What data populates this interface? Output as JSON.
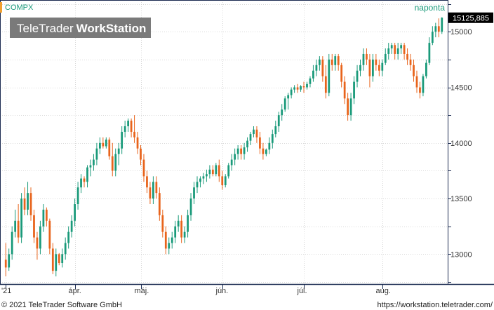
{
  "chart_data": {
    "type": "candlestick",
    "symbol": "COMPX",
    "period_label": "naponta",
    "brand": {
      "light": "TeleTrader",
      "bold": "WorkStation"
    },
    "last_price_label": "15125,885",
    "last_price": 15125.885,
    "ylim": [
      12750,
      15260
    ],
    "yticks": [
      {
        "value": 13000,
        "label": "13000"
      },
      {
        "value": 13500,
        "label": "13500"
      },
      {
        "value": 14000,
        "label": "14000"
      },
      {
        "value": 14500,
        "label": "14500"
      },
      {
        "value": 15000,
        "label": "15000"
      }
    ],
    "xticks": [
      {
        "index": 0,
        "label": "'21"
      },
      {
        "index": 22,
        "label": "ápr."
      },
      {
        "index": 43,
        "label": "máj."
      },
      {
        "index": 69,
        "label": "jún."
      },
      {
        "index": 95,
        "label": "júl."
      },
      {
        "index": 120,
        "label": "aug."
      }
    ],
    "grid": true,
    "colors": {
      "up": "#1a9a7a",
      "down": "#e8641c",
      "axis": "#1a2a50",
      "grid": "#cccccc",
      "label_bg": "#000000",
      "label_fg": "#ffffff",
      "accent": "#f0a030",
      "symbol": "#1a9a7a"
    },
    "candles": [
      [
        12950,
        13100,
        12800,
        12880
      ],
      [
        12880,
        13050,
        12850,
        13000
      ],
      [
        13000,
        13250,
        12950,
        13200
      ],
      [
        13200,
        13400,
        13150,
        13300
      ],
      [
        13300,
        13450,
        13100,
        13150
      ],
      [
        13150,
        13550,
        13100,
        13500
      ],
      [
        13500,
        13600,
        13350,
        13400
      ],
      [
        13400,
        13650,
        13350,
        13550
      ],
      [
        13550,
        13600,
        13300,
        13350
      ],
      [
        13350,
        13400,
        13100,
        13150
      ],
      [
        13150,
        13200,
        12950,
        13050
      ],
      [
        13050,
        13300,
        13000,
        13250
      ],
      [
        13250,
        13450,
        13200,
        13400
      ],
      [
        13400,
        13420,
        13250,
        13300
      ],
      [
        13300,
        13320,
        13000,
        13050
      ],
      [
        13050,
        13100,
        12820,
        12850
      ],
      [
        12850,
        13050,
        12800,
        13000
      ],
      [
        13000,
        13010,
        12900,
        12920
      ],
      [
        12920,
        13050,
        12880,
        13000
      ],
      [
        13000,
        13150,
        12950,
        13100
      ],
      [
        13100,
        13250,
        13050,
        13200
      ],
      [
        13200,
        13350,
        13150,
        13300
      ],
      [
        13300,
        13500,
        13250,
        13450
      ],
      [
        13450,
        13650,
        13400,
        13600
      ],
      [
        13600,
        13720,
        13550,
        13680
      ],
      [
        13680,
        13700,
        13600,
        13650
      ],
      [
        13650,
        13800,
        13600,
        13780
      ],
      [
        13780,
        13850,
        13700,
        13800
      ],
      [
        13800,
        13900,
        13750,
        13850
      ],
      [
        13850,
        14000,
        13800,
        13950
      ],
      [
        13950,
        14050,
        13900,
        14000
      ],
      [
        14000,
        14050,
        13950,
        13970
      ],
      [
        13970,
        14050,
        13950,
        14030
      ],
      [
        14030,
        14050,
        13850,
        13880
      ],
      [
        13880,
        14000,
        13700,
        13750
      ],
      [
        13750,
        13950,
        13700,
        13900
      ],
      [
        13900,
        14000,
        13800,
        13950
      ],
      [
        13950,
        14150,
        13900,
        14100
      ],
      [
        14100,
        14200,
        14050,
        14150
      ],
      [
        14150,
        14220,
        14100,
        14200
      ],
      [
        14200,
        14220,
        14050,
        14100
      ],
      [
        14100,
        14250,
        14000,
        14050
      ],
      [
        14050,
        14100,
        13900,
        13950
      ],
      [
        13950,
        13980,
        13800,
        13850
      ],
      [
        13850,
        13900,
        13650,
        13700
      ],
      [
        13700,
        13750,
        13550,
        13600
      ],
      [
        13600,
        13650,
        13450,
        13500
      ],
      [
        13500,
        13700,
        13450,
        13650
      ],
      [
        13650,
        13700,
        13500,
        13550
      ],
      [
        13550,
        13600,
        13300,
        13350
      ],
      [
        13350,
        13400,
        13150,
        13200
      ],
      [
        13200,
        13250,
        13000,
        13050
      ],
      [
        13050,
        13150,
        13000,
        13100
      ],
      [
        13100,
        13200,
        13050,
        13150
      ],
      [
        13150,
        13300,
        13100,
        13250
      ],
      [
        13250,
        13350,
        13200,
        13300
      ],
      [
        13300,
        13350,
        13100,
        13150
      ],
      [
        13150,
        13250,
        13100,
        13200
      ],
      [
        13200,
        13400,
        13150,
        13350
      ],
      [
        13350,
        13550,
        13300,
        13500
      ],
      [
        13500,
        13650,
        13450,
        13600
      ],
      [
        13600,
        13700,
        13550,
        13650
      ],
      [
        13650,
        13700,
        13600,
        13680
      ],
      [
        13680,
        13730,
        13630,
        13700
      ],
      [
        13700,
        13760,
        13650,
        13720
      ],
      [
        13720,
        13800,
        13680,
        13760
      ],
      [
        13760,
        13800,
        13700,
        13720
      ],
      [
        13720,
        13820,
        13700,
        13800
      ],
      [
        13800,
        13850,
        13650,
        13700
      ],
      [
        13700,
        13750,
        13580,
        13620
      ],
      [
        13620,
        13720,
        13600,
        13700
      ],
      [
        13700,
        13820,
        13680,
        13800
      ],
      [
        13800,
        13900,
        13750,
        13850
      ],
      [
        13850,
        13950,
        13800,
        13900
      ],
      [
        13900,
        13980,
        13850,
        13950
      ],
      [
        13950,
        13980,
        13850,
        13900
      ],
      [
        13900,
        14000,
        13850,
        13960
      ],
      [
        13960,
        14050,
        13920,
        14020
      ],
      [
        14020,
        14100,
        13980,
        14080
      ],
      [
        14080,
        14150,
        14050,
        14120
      ],
      [
        14120,
        14150,
        14000,
        14050
      ],
      [
        14050,
        14100,
        13900,
        13950
      ],
      [
        13950,
        14000,
        13850,
        13900
      ],
      [
        13900,
        13950,
        13880,
        13940
      ],
      [
        13940,
        14050,
        13900,
        14000
      ],
      [
        14000,
        14120,
        13950,
        14080
      ],
      [
        14080,
        14200,
        14050,
        14150
      ],
      [
        14150,
        14280,
        14100,
        14250
      ],
      [
        14250,
        14350,
        14200,
        14300
      ],
      [
        14300,
        14420,
        14280,
        14400
      ],
      [
        14400,
        14450,
        14300,
        14430
      ],
      [
        14430,
        14500,
        14400,
        14480
      ],
      [
        14480,
        14520,
        14450,
        14500
      ],
      [
        14500,
        14530,
        14450,
        14480
      ],
      [
        14480,
        14520,
        14460,
        14510
      ],
      [
        14510,
        14550,
        14450,
        14500
      ],
      [
        14500,
        14550,
        14480,
        14530
      ],
      [
        14530,
        14600,
        14500,
        14580
      ],
      [
        14580,
        14700,
        14550,
        14650
      ],
      [
        14650,
        14750,
        14600,
        14700
      ],
      [
        14700,
        14780,
        14650,
        14750
      ],
      [
        14750,
        14780,
        14550,
        14600
      ],
      [
        14600,
        14700,
        14400,
        14450
      ],
      [
        14450,
        14800,
        14420,
        14750
      ],
      [
        14750,
        14800,
        14650,
        14700
      ],
      [
        14700,
        14800,
        14650,
        14780
      ],
      [
        14780,
        14800,
        14650,
        14700
      ],
      [
        14700,
        14720,
        14500,
        14550
      ],
      [
        14550,
        14600,
        14350,
        14400
      ],
      [
        14400,
        14450,
        14200,
        14250
      ],
      [
        14250,
        14450,
        14200,
        14400
      ],
      [
        14400,
        14600,
        14350,
        14550
      ],
      [
        14550,
        14700,
        14500,
        14650
      ],
      [
        14650,
        14750,
        14600,
        14700
      ],
      [
        14700,
        14850,
        14650,
        14800
      ],
      [
        14800,
        14850,
        14700,
        14750
      ],
      [
        14750,
        14800,
        14500,
        14600
      ],
      [
        14600,
        14800,
        14550,
        14750
      ],
      [
        14750,
        14800,
        14650,
        14700
      ],
      [
        14700,
        14750,
        14600,
        14650
      ],
      [
        14650,
        14750,
        14600,
        14720
      ],
      [
        14720,
        14850,
        14700,
        14800
      ],
      [
        14800,
        14900,
        14750,
        14850
      ],
      [
        14850,
        14900,
        14800,
        14880
      ],
      [
        14880,
        14900,
        14750,
        14800
      ],
      [
        14800,
        14900,
        14750,
        14850
      ],
      [
        14850,
        14900,
        14800,
        14880
      ],
      [
        14880,
        14900,
        14750,
        14800
      ],
      [
        14800,
        14850,
        14700,
        14750
      ],
      [
        14750,
        14800,
        14650,
        14700
      ],
      [
        14700,
        14750,
        14550,
        14600
      ],
      [
        14600,
        14650,
        14450,
        14500
      ],
      [
        14500,
        14550,
        14400,
        14450
      ],
      [
        14450,
        14620,
        14420,
        14600
      ],
      [
        14600,
        14750,
        14580,
        14720
      ],
      [
        14720,
        14950,
        14700,
        14900
      ],
      [
        14900,
        15050,
        14880,
        15000
      ],
      [
        15000,
        15080,
        14950,
        15050
      ],
      [
        15050,
        15120,
        14950,
        15000
      ],
      [
        15000,
        15130,
        14980,
        15125.885
      ]
    ],
    "footer_left": "© 2021 TeleTrader Software GmbH",
    "footer_right": "https://workstation.teletrader.com/"
  }
}
